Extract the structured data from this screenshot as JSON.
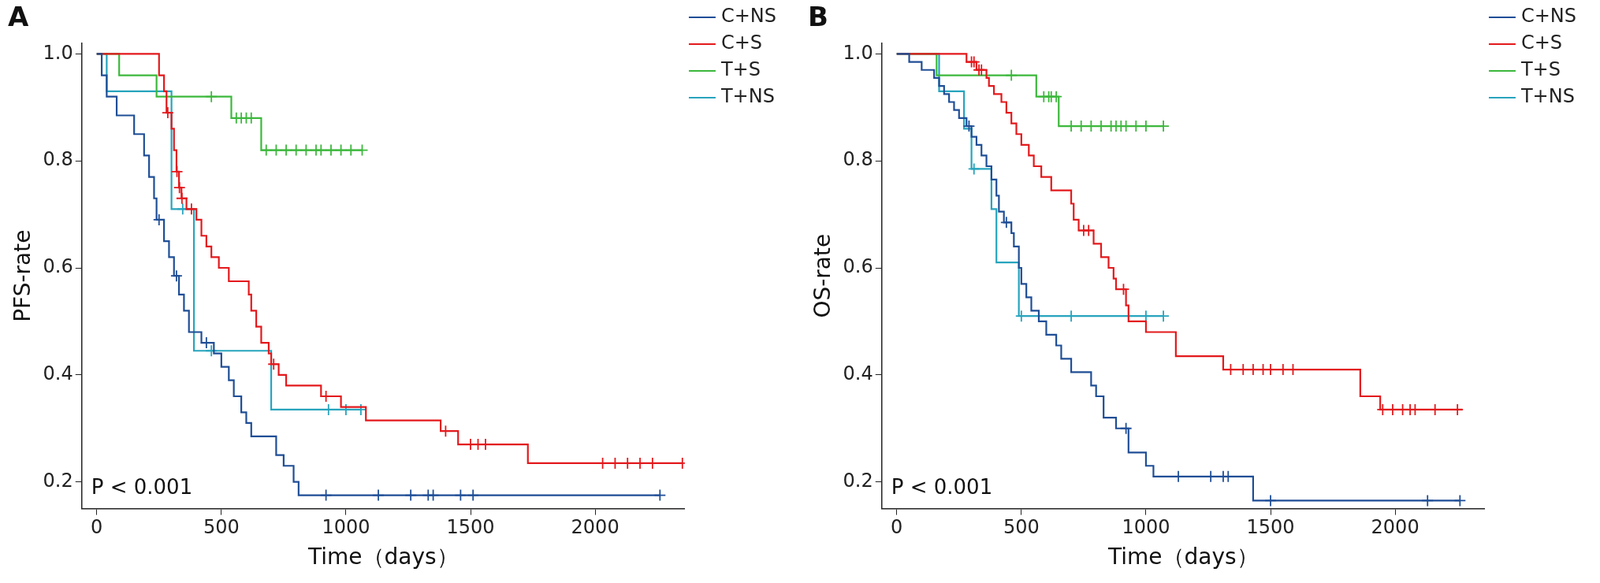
{
  "chart_data": [
    {
      "type": "line",
      "title": "A",
      "x_label": "Time（days）",
      "y_label": "PFS-rate",
      "annotations": [
        "P < 0.001"
      ],
      "legend": "right",
      "grid": false,
      "xlim": [
        -60,
        2360
      ],
      "xticks": [
        0,
        500,
        1000,
        1500,
        2000
      ],
      "ylim": [
        0.15,
        1.02
      ],
      "yticks": [
        0.2,
        0.4,
        0.6,
        0.8,
        {
          "value": 1,
          "label": "1.0"
        }
      ],
      "series": [
        {
          "name": "C+NS",
          "color": "#1f4e96",
          "line_style": "step",
          "marker": "cross",
          "x": [
            0,
            20,
            40,
            80,
            150,
            190,
            210,
            230,
            240,
            270,
            290,
            310,
            330,
            350,
            370,
            420,
            470,
            500,
            530,
            550,
            580,
            600,
            620,
            720,
            750,
            790,
            810,
            2260
          ],
          "values": [
            1,
            0.96,
            0.92,
            0.885,
            0.85,
            0.81,
            0.77,
            0.73,
            0.69,
            0.65,
            0.62,
            0.585,
            0.55,
            0.52,
            0.48,
            0.46,
            0.44,
            0.415,
            0.39,
            0.36,
            0.33,
            0.31,
            0.285,
            0.25,
            0.23,
            0.2,
            0.175,
            0.175
          ],
          "censored": {
            "x": [
              250,
              320,
              440,
              920,
              1130,
              1260,
              1330,
              1350,
              1460,
              1510,
              2260
            ],
            "values": [
              0.69,
              0.585,
              0.46,
              0.175,
              0.175,
              0.175,
              0.175,
              0.175,
              0.175,
              0.175,
              0.175
            ]
          }
        },
        {
          "name": "C+S",
          "color": "#e3191c",
          "line_style": "step",
          "marker": "cross",
          "x": [
            0,
            250,
            270,
            280,
            300,
            310,
            320,
            330,
            340,
            360,
            400,
            420,
            440,
            460,
            490,
            530,
            610,
            620,
            640,
            660,
            690,
            700,
            730,
            760,
            900,
            980,
            1080,
            1380,
            1450,
            1730,
            2350
          ],
          "values": [
            1,
            0.96,
            0.93,
            0.89,
            0.86,
            0.82,
            0.78,
            0.75,
            0.73,
            0.71,
            0.69,
            0.66,
            0.64,
            0.62,
            0.6,
            0.575,
            0.55,
            0.52,
            0.49,
            0.46,
            0.44,
            0.42,
            0.4,
            0.38,
            0.36,
            0.34,
            0.315,
            0.295,
            0.27,
            0.235,
            0.235
          ],
          "censored": {
            "x": [
              285,
              322,
              332,
              342,
              380,
              710,
              920,
              1400,
              1500,
              1530,
              1560,
              2030,
              2080,
              2130,
              2180,
              2230,
              2350
            ],
            "values": [
              0.89,
              0.78,
              0.75,
              0.73,
              0.71,
              0.42,
              0.36,
              0.295,
              0.27,
              0.27,
              0.27,
              0.235,
              0.235,
              0.235,
              0.235,
              0.235,
              0.235
            ]
          }
        },
        {
          "name": "T+S",
          "color": "#3cb83c",
          "line_style": "step",
          "marker": "cross",
          "x": [
            0,
            90,
            240,
            540,
            660,
            1065
          ],
          "values": [
            1,
            0.96,
            0.92,
            0.88,
            0.82,
            0.82
          ],
          "censored": {
            "x": [
              460,
              560,
              580,
              600,
              620,
              680,
              720,
              760,
              800,
              840,
              880,
              900,
              940,
              980,
              1020,
              1065
            ],
            "values": [
              0.92,
              0.88,
              0.88,
              0.88,
              0.88,
              0.82,
              0.82,
              0.82,
              0.82,
              0.82,
              0.82,
              0.82,
              0.82,
              0.82,
              0.82,
              0.82
            ]
          }
        },
        {
          "name": "T+NS",
          "color": "#27a4bd",
          "line_style": "step",
          "marker": "cross",
          "x": [
            0,
            40,
            300,
            390,
            700,
            1060
          ],
          "values": [
            1,
            0.93,
            0.71,
            0.445,
            0.335,
            0.335
          ],
          "censored": {
            "x": [
              345,
              460,
              930,
              1000,
              1060
            ],
            "values": [
              0.71,
              0.445,
              0.335,
              0.335,
              0.335
            ]
          }
        }
      ]
    },
    {
      "type": "line",
      "title": "B",
      "x_label": "Time（days）",
      "y_label": "OS-rate",
      "annotations": [
        "P < 0.001"
      ],
      "legend": "right",
      "grid": false,
      "xlim": [
        -60,
        2360
      ],
      "xticks": [
        0,
        500,
        1000,
        1500,
        2000
      ],
      "ylim": [
        0.15,
        1.02
      ],
      "yticks": [
        0.2,
        0.4,
        0.6,
        0.8,
        {
          "value": 1,
          "label": "1.0"
        }
      ],
      "series": [
        {
          "name": "C+NS",
          "color": "#1f4e96",
          "line_style": "step",
          "marker": "cross",
          "x": [
            0,
            50,
            100,
            150,
            170,
            190,
            210,
            230,
            250,
            280,
            300,
            320,
            340,
            360,
            380,
            400,
            410,
            430,
            460,
            470,
            490,
            500,
            520,
            540,
            570,
            600,
            640,
            660,
            700,
            780,
            800,
            830,
            880,
            930,
            1000,
            1030,
            1430,
            2260
          ],
          "values": [
            1,
            0.985,
            0.97,
            0.955,
            0.94,
            0.925,
            0.91,
            0.895,
            0.88,
            0.865,
            0.845,
            0.83,
            0.81,
            0.79,
            0.765,
            0.735,
            0.705,
            0.685,
            0.665,
            0.64,
            0.6,
            0.57,
            0.545,
            0.52,
            0.5,
            0.475,
            0.455,
            0.43,
            0.405,
            0.38,
            0.36,
            0.32,
            0.3,
            0.255,
            0.23,
            0.21,
            0.165,
            0.165
          ],
          "censored": {
            "x": [
              290,
              440,
              920,
              1130,
              1260,
              1310,
              1330,
              1500,
              2130,
              2260
            ],
            "values": [
              0.865,
              0.685,
              0.3,
              0.21,
              0.21,
              0.21,
              0.21,
              0.165,
              0.165,
              0.165
            ]
          }
        },
        {
          "name": "C+S",
          "color": "#e3191c",
          "line_style": "step",
          "marker": "cross",
          "x": [
            0,
            280,
            320,
            360,
            370,
            390,
            420,
            440,
            460,
            480,
            500,
            530,
            550,
            580,
            620,
            700,
            710,
            730,
            790,
            820,
            850,
            870,
            880,
            920,
            930,
            1000,
            1120,
            1310,
            1860,
            1940,
            2270
          ],
          "values": [
            1,
            0.985,
            0.97,
            0.955,
            0.94,
            0.925,
            0.91,
            0.89,
            0.87,
            0.85,
            0.83,
            0.81,
            0.79,
            0.77,
            0.745,
            0.72,
            0.69,
            0.67,
            0.645,
            0.62,
            0.6,
            0.58,
            0.56,
            0.53,
            0.5,
            0.48,
            0.435,
            0.41,
            0.36,
            0.335,
            0.335
          ],
          "censored": {
            "x": [
              300,
              310,
              330,
              340,
              750,
              770,
              910,
              1340,
              1390,
              1430,
              1470,
              1500,
              1550,
              1590,
              1950,
              1990,
              2030,
              2060,
              2080,
              2160,
              2250
            ],
            "values": [
              0.985,
              0.985,
              0.97,
              0.97,
              0.67,
              0.67,
              0.56,
              0.41,
              0.41,
              0.41,
              0.41,
              0.41,
              0.41,
              0.41,
              0.335,
              0.335,
              0.335,
              0.335,
              0.335,
              0.335,
              0.335
            ]
          }
        },
        {
          "name": "T+S",
          "color": "#3cb83c",
          "line_style": "step",
          "marker": "cross",
          "x": [
            0,
            160,
            560,
            650,
            1070
          ],
          "values": [
            1,
            0.96,
            0.92,
            0.865,
            0.865
          ],
          "censored": {
            "x": [
              460,
              590,
              610,
              620,
              640,
              700,
              740,
              780,
              820,
              860,
              880,
              900,
              920,
              960,
              1000,
              1070
            ],
            "values": [
              0.96,
              0.92,
              0.92,
              0.92,
              0.92,
              0.865,
              0.865,
              0.865,
              0.865,
              0.865,
              0.865,
              0.865,
              0.865,
              0.865,
              0.865,
              0.865
            ]
          }
        },
        {
          "name": "T+NS",
          "color": "#27a4bd",
          "line_style": "step",
          "marker": "cross",
          "x": [
            0,
            170,
            270,
            300,
            380,
            400,
            490,
            1070
          ],
          "values": [
            1,
            0.93,
            0.86,
            0.785,
            0.71,
            0.61,
            0.51,
            0.51
          ],
          "censored": {
            "x": [
              310,
              500,
              700,
              1000,
              1070
            ],
            "values": [
              0.785,
              0.51,
              0.51,
              0.51,
              0.51
            ]
          }
        }
      ]
    }
  ]
}
